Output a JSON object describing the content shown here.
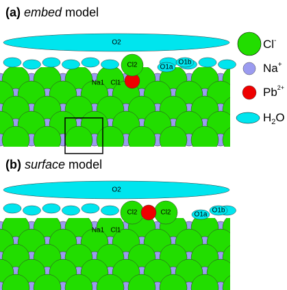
{
  "panels": [
    {
      "label": "(a)",
      "name": "embed",
      "suffix": "model",
      "sites": {
        "o2": "O2",
        "cl2": "Cl2",
        "cl1": "Cl1",
        "na1": "Na1",
        "o1a": "O1a",
        "o1b": "O1b"
      }
    },
    {
      "label": "(b)",
      "name": "surface",
      "suffix": "model",
      "sites": {
        "o2": "O2",
        "cl2a": "Cl2",
        "cl2b": "Cl2",
        "cl1": "Cl1",
        "na1": "Na1",
        "o1a": "O1a",
        "o1b": "O1b"
      }
    }
  ],
  "legend": [
    {
      "base": "Cl",
      "sup": "-"
    },
    {
      "base": "Na",
      "sup": "+"
    },
    {
      "base": "Pb",
      "sup": "2+"
    },
    {
      "base": "H",
      "sub": "2",
      "end": "O"
    }
  ]
}
